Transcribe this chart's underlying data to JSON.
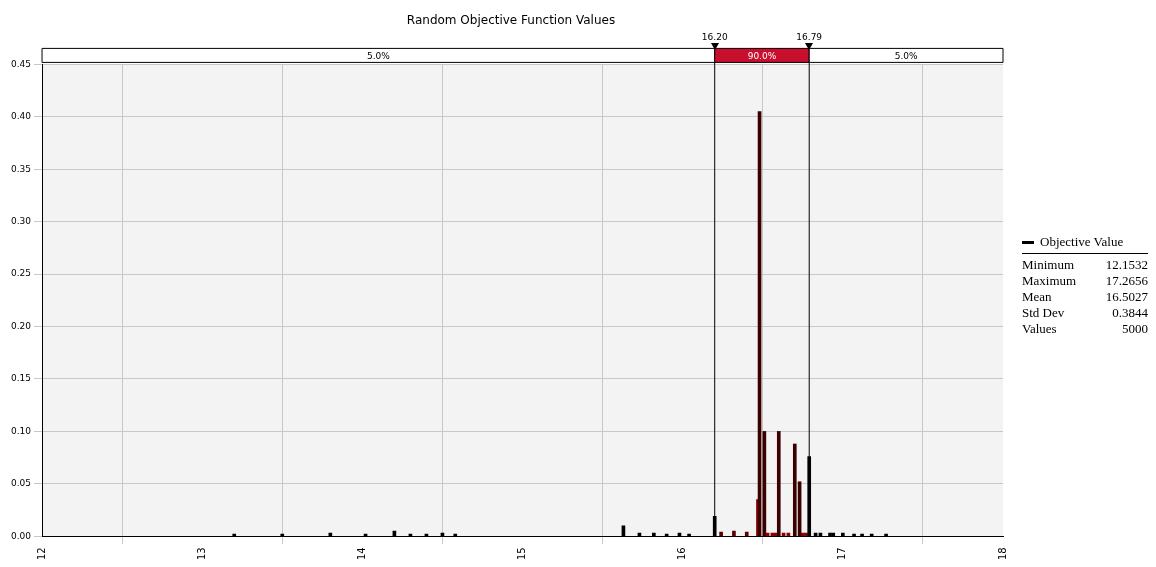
{
  "chart_data": {
    "type": "bar",
    "title": "Random Objective Function Values",
    "x": [
      13.2,
      13.5,
      13.8,
      14.02,
      14.2,
      14.3,
      14.4,
      14.5,
      14.58,
      15.63,
      15.73,
      15.82,
      15.9,
      15.98,
      16.04,
      16.2,
      16.24,
      16.32,
      16.4,
      16.47,
      16.48,
      16.51,
      16.53,
      16.56,
      16.58,
      16.6,
      16.63,
      16.66,
      16.7,
      16.73,
      16.75,
      16.77,
      16.79,
      16.83,
      16.86,
      16.92,
      16.94,
      17.0,
      17.07,
      17.12,
      17.18,
      17.27
    ],
    "series": [
      {
        "name": "Objective Value",
        "color": "#000000",
        "values": [
          0.002,
          0.002,
          0.003,
          0.002,
          0.005,
          0.002,
          0.002,
          0.003,
          0.002,
          0.01,
          0.003,
          0.003,
          0.002,
          0.003,
          0.002,
          0.019,
          0.004,
          0.005,
          0.004,
          0.035,
          0.405,
          0.1,
          0.003,
          0.003,
          0.003,
          0.1,
          0.003,
          0.003,
          0.088,
          0.052,
          0.003,
          0.003,
          0.076,
          0.003,
          0.003,
          0.003,
          0.003,
          0.003,
          0.002,
          0.002,
          0.002,
          0.002
        ],
        "colors": [
          "#000000",
          "#000000",
          "#000000",
          "#000000",
          "#000000",
          "#000000",
          "#000000",
          "#000000",
          "#000000",
          "#000000",
          "#000000",
          "#000000",
          "#000000",
          "#000000",
          "#000000",
          "#000000",
          "#5c0000",
          "#5c0000",
          "#5c0000",
          "#8b0000",
          "#3a0000",
          "#3a0000",
          "#8b0000",
          "#8b0000",
          "#8b0000",
          "#3a0000",
          "#8b0000",
          "#8b0000",
          "#3a0000",
          "#3a0000",
          "#8b0000",
          "#8b0000",
          "#000000",
          "#000000",
          "#000000",
          "#000000",
          "#000000",
          "#000000",
          "#000000",
          "#000000",
          "#000000",
          "#000000"
        ]
      }
    ],
    "xlim": [
      12,
      18
    ],
    "xticks": [
      12,
      13,
      14,
      15,
      16,
      17,
      18
    ],
    "ylim": [
      0,
      0.45
    ],
    "yticks": [
      {
        "value": 0,
        "label": "0.00"
      },
      {
        "value": 0.05,
        "label": "0.05"
      },
      {
        "value": 0.1,
        "label": "0.10"
      },
      {
        "value": 0.15,
        "label": "0.15"
      },
      {
        "value": 0.2,
        "label": "0.20"
      },
      {
        "value": 0.25,
        "label": "0.25"
      },
      {
        "value": 0.3,
        "label": "0.30"
      },
      {
        "value": 0.35,
        "label": "0.35"
      },
      {
        "value": 0.4,
        "label": "0.40"
      },
      {
        "value": 0.45,
        "label": "0.45"
      }
    ],
    "ref_lines": [
      {
        "axis": "x",
        "value": 16.2,
        "label": "16.20",
        "color": "#000000"
      },
      {
        "axis": "x",
        "value": 16.79,
        "label": "16.79",
        "color": "#000000"
      }
    ],
    "annotations": [
      "5.0%",
      "90.0%",
      "5.0%",
      "Minimum 12.1532",
      "Maximum 17.2656",
      "Mean 16.5027",
      "Std Dev 0.3844",
      "Values 5000"
    ],
    "grid": true,
    "legend": "right"
  }
}
